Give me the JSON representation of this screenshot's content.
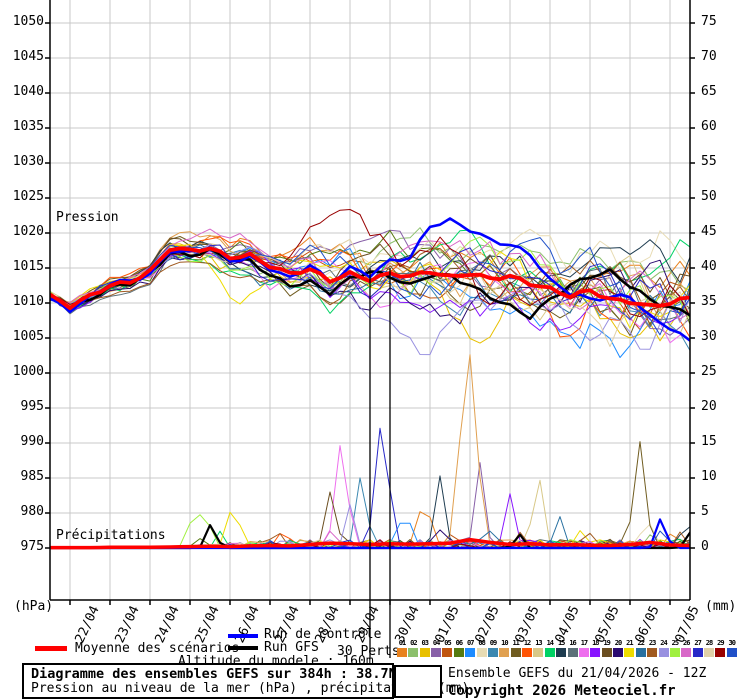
{
  "plot": {
    "pressure_label": "Pression",
    "precip_label": "Précipitations",
    "grid_color": "#c9c9c9",
    "axis_color": "#000000"
  },
  "legend": {
    "mean_label": "Moyenne des scénarios",
    "control_label": "Run de contrôle",
    "gfs_label": "Run GFS",
    "perts_label": "30 Perts.",
    "altitude_text": "Altitude du modele : 160m",
    "member_numbers": [
      "01",
      "02",
      "03",
      "04",
      "05",
      "06",
      "07",
      "08",
      "09",
      "10",
      "11",
      "12",
      "13",
      "14",
      "15",
      "16",
      "17",
      "18",
      "19",
      "20",
      "21",
      "22",
      "23",
      "24",
      "25",
      "26",
      "27",
      "28",
      "29",
      "30"
    ],
    "mean_color": "#ff0000",
    "control_color": "#0000ff",
    "gfs_color": "#000000"
  },
  "footer": {
    "title": "Diagramme des ensembles GEFS sur 384h : 38.7N 0.1W",
    "subtitle": "Pression au niveau de la mer (hPa) , précipitations (mm)",
    "run_info": "Ensemble GEFS du 21/04/2026 - 12Z",
    "copyright": "Copyright 2026 Meteociel.fr"
  },
  "chart_data": {
    "type": "line",
    "title": "GEFS ensemble diagram : sea level pressure and precipitation",
    "x_start": "21/04 12Z",
    "x_total_days": 16,
    "x_step_days": 0.5,
    "x_tick_labels": [
      "22/04",
      "23/04",
      "24/04",
      "25/04",
      "26/04",
      "27/04",
      "28/04",
      "29/04",
      "30/04",
      "01/05",
      "02/05",
      "03/05",
      "04/05",
      "05/05",
      "06/05",
      "07/05"
    ],
    "pressure_axis": {
      "label": "(hPa)",
      "min": 975,
      "max": 1050,
      "tick_step": 5
    },
    "precip_axis": {
      "label": "(mm)",
      "min": 0,
      "max": 75,
      "tick_step": 5
    },
    "marker_days": [
      8,
      8.5
    ],
    "series": {
      "mean_pressure": [
        1011,
        1009.5,
        1011,
        1012.5,
        1013,
        1014.5,
        1017.8,
        1017.5,
        1017.8,
        1016.5,
        1016.8,
        1015.3,
        1014.2,
        1014.8,
        1013.2,
        1014.2,
        1013.3,
        1014.2,
        1013.8,
        1014.5,
        1013.7,
        1014.2,
        1013.5,
        1013.8,
        1012.8,
        1012,
        1011,
        1011.8,
        1010.5,
        1010.2,
        1009.5,
        1010,
        1010.8
      ],
      "control_pressure": [
        1010.5,
        1009,
        1010.8,
        1012.8,
        1013.2,
        1014,
        1017.5,
        1017.2,
        1018,
        1016,
        1016.5,
        1015,
        1013.5,
        1015.5,
        1013,
        1015,
        1014,
        1016,
        1016.5,
        1021,
        1021.8,
        1020.5,
        1019,
        1018.3,
        1017,
        1013.2,
        1011.5,
        1010.5,
        1010.8,
        1011,
        1008,
        1006.5,
        1004.5
      ],
      "gfs_pressure": [
        1011,
        1009.3,
        1010.5,
        1012.3,
        1012.8,
        1014.2,
        1017.2,
        1016.8,
        1017.5,
        1016.2,
        1016,
        1014,
        1012.5,
        1013,
        1011.5,
        1013.5,
        1014.5,
        1013.8,
        1012.5,
        1014,
        1013.9,
        1012.5,
        1010.9,
        1009.5,
        1008,
        1010.5,
        1012.5,
        1013.8,
        1014.5,
        1012.5,
        1010.5,
        1009.3,
        1008.5
      ],
      "ensemble_spread": [
        0.7,
        0.9,
        1.1,
        1.3,
        1.5,
        1.7,
        1.9,
        2.1,
        2.3,
        2.5,
        2.8,
        3.1,
        3.5,
        3.9,
        4.3,
        4.6,
        5,
        5.2,
        5.4,
        5.6,
        5.8,
        6,
        6.2,
        6.4,
        6.6,
        6.8,
        7,
        7.3,
        7.6,
        8,
        8.4,
        8.8,
        9.2
      ],
      "mean_precip": [
        0.05,
        0.05,
        0.05,
        0.1,
        0.1,
        0.1,
        0.15,
        0.2,
        0.25,
        0.2,
        0.3,
        0.35,
        0.3,
        0.5,
        0.7,
        0.6,
        0.5,
        0.6,
        0.55,
        0.6,
        0.7,
        1.2,
        0.8,
        0.5,
        0.6,
        0.45,
        0.5,
        0.4,
        0.35,
        0.5,
        0.8,
        0.45,
        0.35
      ]
    },
    "members": {
      "count": 30,
      "colors": [
        "#e8821e",
        "#8cc06c",
        "#e8c000",
        "#8860a8",
        "#c05510",
        "#567a10",
        "#1e8cff",
        "#e8dcb4",
        "#3c88b0",
        "#e0a050",
        "#705c20",
        "#ff5505",
        "#d8c888",
        "#00d264",
        "#1e3c50",
        "#5c7078",
        "#ee6eee",
        "#8814ff",
        "#6b4e20",
        "#2a0a70",
        "#eedc00",
        "#2870a0",
        "#a05a20",
        "#9890e0",
        "#a0f040",
        "#d868c8",
        "#2828c8",
        "#e0d0a8",
        "#980000",
        "#2050c8"
      ],
      "pressure_bumps": [
        {
          "m": 29,
          "t": 7.2,
          "a": 9.5,
          "w": 1.2
        },
        {
          "m": 29,
          "t": 9.8,
          "a": 6.5,
          "w": 1.0
        },
        {
          "m": 24,
          "t": 9.3,
          "a": -7,
          "w": 0.55
        },
        {
          "m": 21,
          "t": 4.8,
          "a": -6,
          "w": 0.9
        },
        {
          "m": 12,
          "t": 13,
          "a": -6,
          "w": 0.9
        },
        {
          "m": 8,
          "t": 15.3,
          "a": 3.5,
          "w": 1.0
        },
        {
          "m": 3,
          "t": 10.5,
          "a": -5,
          "w": 0.8
        }
      ],
      "precip_spikes": [
        {
          "m": 25,
          "t": 3.6,
          "p": 4.3,
          "w": 0.22
        },
        {
          "m": 25,
          "t": 3.9,
          "p": 4.0,
          "w": 0.18
        },
        {
          "m": 6,
          "t": 3.7,
          "p": 1.5,
          "w": 0.15
        },
        {
          "m": "gfs",
          "t": 4.05,
          "p": 3.6,
          "w": 0.16
        },
        {
          "m": 14,
          "t": 4.25,
          "p": 2.4,
          "w": 0.13
        },
        {
          "m": 21,
          "t": 4.55,
          "p": 5.2,
          "w": 0.2
        },
        {
          "m": 21,
          "t": 4.8,
          "p": 1.5,
          "w": 0.15
        },
        {
          "m": 23,
          "t": 5.6,
          "p": 1.6,
          "w": 0.2
        },
        {
          "m": 12,
          "t": 5.9,
          "p": 1.8,
          "w": 0.18
        },
        {
          "m": 14,
          "t": 6.1,
          "p": 1.6,
          "w": 0.15
        },
        {
          "m": 19,
          "t": 7.0,
          "p": 8,
          "w": 0.18
        },
        {
          "m": 17,
          "t": 7.3,
          "p": 15,
          "w": 0.2
        },
        {
          "m": 26,
          "t": 7.1,
          "p": 2.5,
          "w": 0.15
        },
        {
          "m": 24,
          "t": 7.5,
          "p": 6.2,
          "w": 0.16
        },
        {
          "m": 9,
          "t": 7.8,
          "p": 10.5,
          "w": 0.18
        },
        {
          "m": 27,
          "t": 8.3,
          "p": 18,
          "w": 0.22
        },
        {
          "m": 7,
          "t": 8.7,
          "p": 3.6,
          "w": 0.15
        },
        {
          "m": 7,
          "t": 8.95,
          "p": 3.2,
          "w": 0.13
        },
        {
          "m": 1,
          "t": 9.3,
          "p": 5.7,
          "w": 0.16
        },
        {
          "m": 1,
          "t": 9.55,
          "p": 3,
          "w": 0.13
        },
        {
          "m": 20,
          "t": 9.7,
          "p": 3,
          "w": 0.13
        },
        {
          "m": 15,
          "t": 9.75,
          "p": 9.6,
          "w": 0.18
        },
        {
          "m": 5,
          "t": 10.1,
          "p": 3.2,
          "w": 0.14
        },
        {
          "m": 10,
          "t": 10.2,
          "p": 6.3,
          "w": 0.15
        },
        {
          "m": 10,
          "t": 10.5,
          "p": 27.5,
          "w": 0.25
        },
        {
          "m": 4,
          "t": 10.75,
          "p": 12.2,
          "w": 0.16
        },
        {
          "m": 22,
          "t": 10.9,
          "p": 4,
          "w": 0.14
        },
        {
          "m": 18,
          "t": 11.5,
          "p": 7.7,
          "w": 0.18
        },
        {
          "m": "gfs",
          "t": 11.7,
          "p": 2.2,
          "w": 0.13
        },
        {
          "m": 23,
          "t": 11.8,
          "p": 2.5,
          "w": 0.15
        },
        {
          "m": 13,
          "t": 12.2,
          "p": 9.4,
          "w": 0.18
        },
        {
          "m": 22,
          "t": 12.7,
          "p": 4.2,
          "w": 0.15
        },
        {
          "m": 21,
          "t": 13.2,
          "p": 1.8,
          "w": 0.14
        },
        {
          "m": 23,
          "t": 13.4,
          "p": 2.8,
          "w": 0.15
        },
        {
          "m": 11,
          "t": 14.75,
          "p": 15.2,
          "w": 0.2
        },
        {
          "m": 8,
          "t": 14.9,
          "p": 5.3,
          "w": 0.15
        },
        {
          "m": 2,
          "t": 15.1,
          "p": 3,
          "w": 0.14
        },
        {
          "m": "control",
          "t": 15.3,
          "p": 4.5,
          "w": 0.16
        },
        {
          "m": 30,
          "t": 15.35,
          "p": 3,
          "w": 0.14
        },
        {
          "m": 1,
          "t": 15.6,
          "p": 3.1,
          "w": 0.15
        },
        {
          "m": 23,
          "t": 15.8,
          "p": 2.6,
          "w": 0.14
        },
        {
          "m": 15,
          "t": 15.9,
          "p": 4.5,
          "w": 0.16
        },
        {
          "m": "gfs",
          "t": 16,
          "p": 2.2,
          "w": 0.14
        }
      ]
    }
  }
}
